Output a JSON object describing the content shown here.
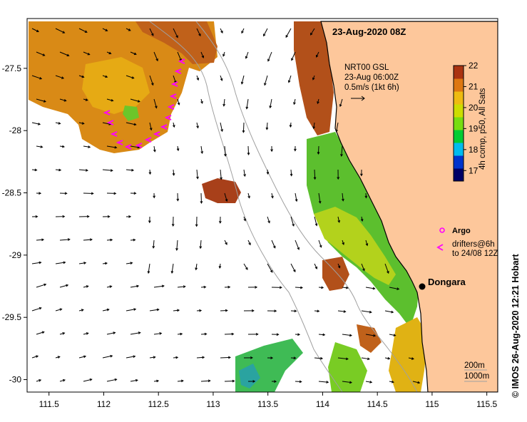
{
  "title": "23-Aug-2020 08Z",
  "current_legend": {
    "line1": "NRT00 GSL",
    "line2": "23-Aug 06:00Z",
    "line3": "0.5m/s (1kt 6h)"
  },
  "colorbar": {
    "label": "4h comp, p50, All Sats",
    "ticks": [
      "22",
      "21",
      "20",
      "19",
      "18",
      "17"
    ],
    "min": 16.5,
    "max": 22,
    "colors": [
      "#000066",
      "#0033cc",
      "#00bbee",
      "#00cc33",
      "#77dd11",
      "#ccdd00",
      "#eebb11",
      "#dd7711",
      "#aa3311"
    ]
  },
  "argo_legend": {
    "argo": "Argo",
    "drifters": "drifters@6h",
    "drifters_range": "to 24/08 12Z"
  },
  "town": "Dongara",
  "depth_legend": {
    "d1": "200m",
    "d2": "1000m"
  },
  "credit": "© IMOS 26-Aug-2020 12:21 Hobart",
  "map_extent": {
    "lon": [
      111.3,
      115.6
    ],
    "lat": [
      -30.1,
      -27.1
    ]
  },
  "x_ticks": [
    "111.5",
    "112",
    "112.5",
    "113",
    "113.5",
    "114",
    "114.5",
    "115",
    "115.5"
  ],
  "y_ticks": [
    "-27.5",
    "-28",
    "-28.5",
    "-29",
    "-29.5",
    "-30"
  ],
  "colors": {
    "land": "#fdc79b",
    "coast": "#000000",
    "argo": "#ff00ff",
    "isobath": "#a0a0a0"
  }
}
